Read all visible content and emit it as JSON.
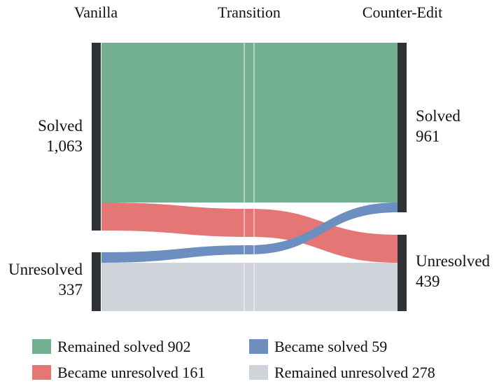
{
  "columns": {
    "left": "Vanilla",
    "middle": "Transition",
    "right": "Counter-Edit"
  },
  "left_nodes": [
    {
      "name": "Solved",
      "count": "1,063"
    },
    {
      "name": "Unresolved",
      "count": "337"
    }
  ],
  "right_nodes": [
    {
      "name": "Solved",
      "count": "961"
    },
    {
      "name": "Unresolved",
      "count": "439"
    }
  ],
  "flows": [
    {
      "name": "Remained solved",
      "from": "Solved",
      "to": "Solved",
      "value": 902,
      "color": "#73b091"
    },
    {
      "name": "Became unresolved",
      "from": "Solved",
      "to": "Unresolved",
      "value": 161,
      "color": "#e57676"
    },
    {
      "name": "Became solved",
      "from": "Unresolved",
      "to": "Solved",
      "value": 59,
      "color": "#6c8fbf"
    },
    {
      "name": "Remained unresolved",
      "from": "Unresolved",
      "to": "Unresolved",
      "value": 278,
      "color": "#cfd3da"
    }
  ],
  "legend": [
    {
      "text": "Remained solved 902",
      "color": "#73b091"
    },
    {
      "text": "Became solved 59",
      "color": "#6c8fbf"
    },
    {
      "text": "Became unresolved 161",
      "color": "#e57676"
    },
    {
      "text": "Remained unresolved 278",
      "color": "#cfd3da"
    }
  ],
  "node_bar_color": "#2f3237"
}
